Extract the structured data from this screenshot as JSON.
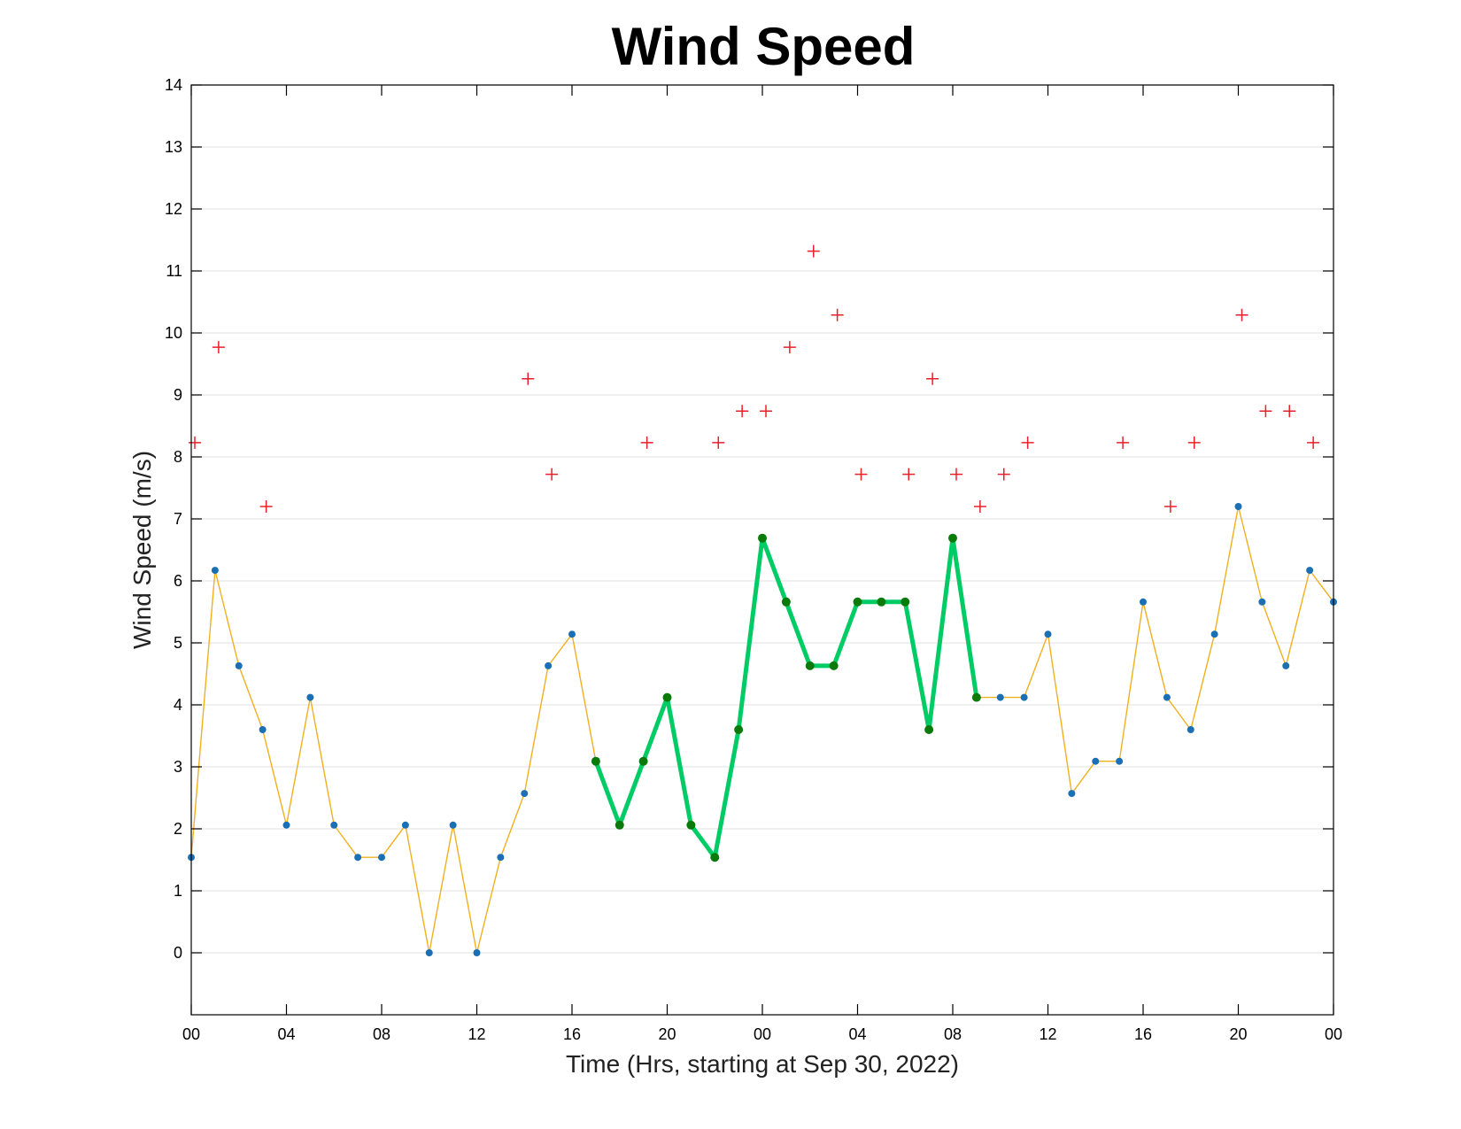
{
  "chart_data": {
    "type": "line",
    "title": "Wind Speed",
    "xlabel": "Time (Hrs, starting at Sep 30, 2022)",
    "ylabel": "Wind Speed (m/s)",
    "xlim": [
      0,
      48
    ],
    "ylim": [
      -1,
      14
    ],
    "grid": "horizontal",
    "x_ticks": [
      {
        "value": 0,
        "label": "00"
      },
      {
        "value": 4,
        "label": "04"
      },
      {
        "value": 8,
        "label": "08"
      },
      {
        "value": 12,
        "label": "12"
      },
      {
        "value": 16,
        "label": "16"
      },
      {
        "value": 20,
        "label": "20"
      },
      {
        "value": 24,
        "label": "00"
      },
      {
        "value": 28,
        "label": "04"
      },
      {
        "value": 32,
        "label": "08"
      },
      {
        "value": 36,
        "label": "12"
      },
      {
        "value": 40,
        "label": "16"
      },
      {
        "value": 44,
        "label": "20"
      },
      {
        "value": 48,
        "label": "00"
      }
    ],
    "y_ticks": [
      0,
      1,
      2,
      3,
      4,
      5,
      6,
      7,
      8,
      9,
      10,
      11,
      12,
      13,
      14
    ],
    "series": [
      {
        "style": "thin-line-dots",
        "colors": {
          "line": "#f0b020",
          "marker": "#1a6fb5"
        },
        "x": [
          0,
          1,
          2,
          3,
          4,
          5,
          6,
          7,
          8,
          9,
          10,
          11,
          12,
          13,
          14,
          15,
          16,
          17,
          18,
          19,
          20,
          21,
          22,
          23,
          24,
          25,
          26,
          27,
          28,
          29,
          30,
          31,
          32,
          33,
          34,
          35,
          36,
          37,
          38,
          39,
          40,
          41,
          42,
          43,
          44,
          45,
          46,
          47,
          48
        ],
        "y": [
          1.54,
          6.17,
          4.63,
          3.6,
          2.06,
          4.12,
          2.06,
          1.54,
          1.54,
          2.06,
          0,
          2.06,
          0,
          1.54,
          2.57,
          4.63,
          5.14,
          3.09,
          2.06,
          3.09,
          4.12,
          2.06,
          1.54,
          3.6,
          6.69,
          5.66,
          4.63,
          4.63,
          5.66,
          5.66,
          5.66,
          3.6,
          6.69,
          4.12,
          4.12,
          4.12,
          5.14,
          2.57,
          3.09,
          3.09,
          5.66,
          4.12,
          3.6,
          5.14,
          7.2,
          5.66,
          4.63,
          6.17,
          5.66
        ]
      },
      {
        "style": "thick-line-dots",
        "colors": {
          "line": "#00cc66",
          "marker": "#0a7a0a"
        },
        "x": [
          17,
          18,
          19,
          20,
          21,
          22,
          23,
          24,
          25,
          26,
          27,
          28,
          29,
          30,
          31,
          32,
          33
        ],
        "y": [
          3.09,
          2.06,
          3.09,
          4.12,
          2.06,
          1.54,
          3.6,
          6.69,
          5.66,
          4.63,
          4.63,
          5.66,
          5.66,
          5.66,
          3.6,
          6.69,
          4.12
        ]
      },
      {
        "style": "plus-markers",
        "colors": {
          "marker": "#e8202a"
        },
        "x": [
          0,
          1,
          3,
          14,
          15,
          19,
          22,
          23,
          24,
          25,
          26,
          27,
          28,
          30,
          31,
          32,
          33,
          34,
          35,
          39,
          41,
          42,
          44,
          45,
          46,
          47
        ],
        "y": [
          8.23,
          9.77,
          7.2,
          9.26,
          7.72,
          8.23,
          8.23,
          8.74,
          8.74,
          9.77,
          11.32,
          10.29,
          7.72,
          7.72,
          9.26,
          7.72,
          7.2,
          7.72,
          8.23,
          8.23,
          7.2,
          8.23,
          10.29,
          8.74,
          8.74,
          8.23
        ]
      }
    ]
  }
}
